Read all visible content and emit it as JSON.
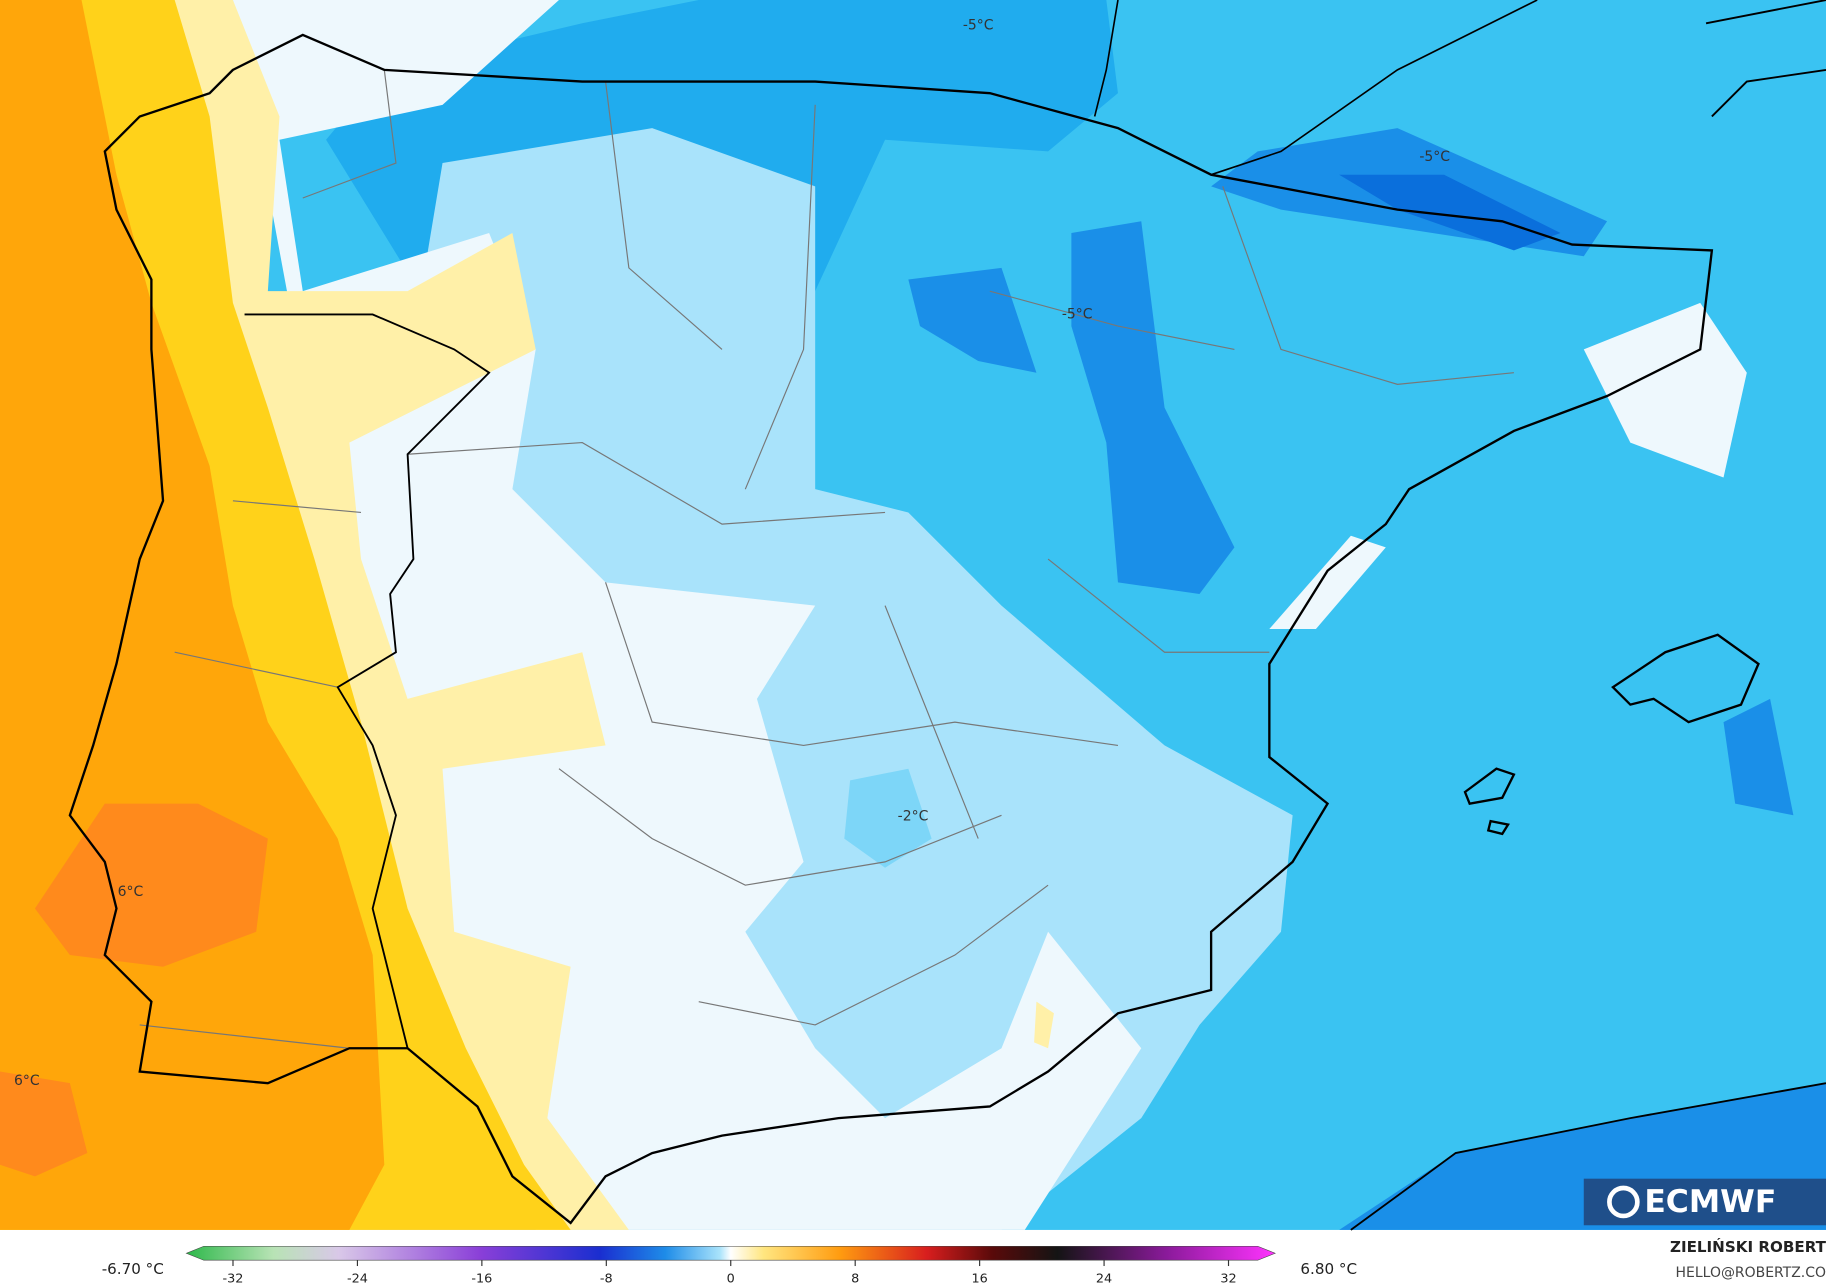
{
  "map": {
    "labels": [
      "-5°C",
      "-5°C",
      "-5°C",
      "-2°C",
      "6°C",
      "6°C"
    ],
    "colorbar": {
      "min_label": "-6.70 °C",
      "max_label": "6.80 °C",
      "range": [
        -35,
        35
      ],
      "ticks": [
        -32,
        -24,
        -16,
        -8,
        0,
        8,
        16,
        24,
        32
      ]
    },
    "credit": {
      "author": "ZIELIŃSKI ROBERT",
      "contact": "HELLO@ROBERTZ.CO",
      "logo": "ECMWF"
    }
  }
}
